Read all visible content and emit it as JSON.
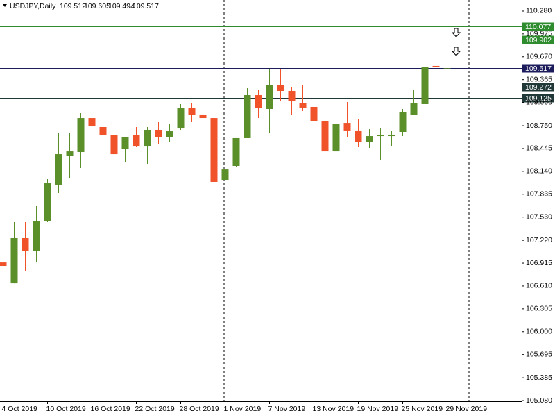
{
  "chart_data": {
    "type": "candlestick",
    "title": "USDJPY,Daily",
    "categories": [
      "4 Oct 2019",
      null,
      null,
      null,
      "10 Oct 2019",
      null,
      null,
      null,
      "16 Oct 2019",
      null,
      null,
      null,
      "22 Oct 2019",
      null,
      null,
      null,
      "28 Oct 2019",
      null,
      null,
      null,
      "1 Nov 2019",
      null,
      null,
      null,
      "7 Nov 2019",
      null,
      null,
      null,
      "13 Nov 2019",
      null,
      null,
      null,
      "19 Nov 2019",
      null,
      null,
      null,
      "25 Nov 2019",
      null,
      null,
      null,
      "29 Nov 2019"
    ],
    "open": [
      106.924,
      106.646,
      107.249,
      107.082,
      107.48,
      107.963,
      108.352,
      108.398,
      108.852,
      108.732,
      108.63,
      108.435,
      108.621,
      108.472,
      108.695,
      108.602,
      108.713,
      108.982,
      108.899,
      108.852,
      108.018,
      108.213,
      108.584,
      109.158,
      108.973,
      109.288,
      109.214,
      109.056,
      109.001,
      108.815,
      108.407,
      108.787,
      108.686,
      108.537,
      108.611,
      108.611,
      108.667,
      108.89,
      109.038,
      109.548,
      109.512
    ],
    "high": [
      107.137,
      107.462,
      107.462,
      107.675,
      108.037,
      108.648,
      108.648,
      108.917,
      108.917,
      108.964,
      108.732,
      108.602,
      108.732,
      108.732,
      108.797,
      108.778,
      109.038,
      109.056,
      109.297,
      108.871,
      108.333,
      108.584,
      109.251,
      109.223,
      109.511,
      109.501,
      109.26,
      109.288,
      109.158,
      108.815,
      108.769,
      109.066,
      108.834,
      108.704,
      108.713,
      108.686,
      108.973,
      109.232,
      109.613,
      109.594,
      109.605
    ],
    "low": [
      106.581,
      106.646,
      106.813,
      106.924,
      107.462,
      107.851,
      108.055,
      108.185,
      108.667,
      108.463,
      108.37,
      108.268,
      108.463,
      108.241,
      108.5,
      108.528,
      108.695,
      108.797,
      108.713,
      107.925,
      107.888,
      108.194,
      108.584,
      108.852,
      108.648,
      109.084,
      108.899,
      108.945,
      108.797,
      108.241,
      108.352,
      108.593,
      108.463,
      108.454,
      108.296,
      108.482,
      108.611,
      108.89,
      109.038,
      109.334,
      109.494
    ],
    "close": [
      106.878,
      107.249,
      107.082,
      107.48,
      107.981,
      108.37,
      108.407,
      108.852,
      108.741,
      108.621,
      108.37,
      108.602,
      108.472,
      108.695,
      108.593,
      108.676,
      108.982,
      108.89,
      108.852,
      108.0,
      108.166,
      108.584,
      109.158,
      108.982,
      109.288,
      109.214,
      109.075,
      108.991,
      108.815,
      108.407,
      108.769,
      108.686,
      108.537,
      108.611,
      108.621,
      108.63,
      108.927,
      109.056,
      109.538,
      109.529,
      109.517
    ],
    "up_color": "#5a8f2a",
    "down_color": "#f0522a",
    "ylim": [
      105.071,
      110.428
    ],
    "yticks": [
      {
        "value": 110.28,
        "label": "110.280"
      },
      109.975,
      {
        "value": 109.67,
        "label": "109.670"
      },
      109.365,
      {
        "value": 109.06,
        "label": "109.060"
      },
      {
        "value": 108.75,
        "label": "108.750"
      },
      108.445,
      {
        "value": 108.14,
        "label": "108.140"
      },
      107.835,
      {
        "value": 107.53,
        "label": "107.530"
      },
      {
        "value": 107.22,
        "label": "107.220"
      },
      106.915,
      {
        "value": 106.61,
        "label": "106.610"
      },
      106.305,
      {
        "value": 106.0,
        "label": "106.000"
      },
      105.695,
      105.385,
      {
        "value": 105.08,
        "label": "105.080"
      }
    ],
    "levels": [
      {
        "value": 110.077,
        "color": "#2e8b2e"
      },
      {
        "value": 109.902,
        "color": "#2e8b2e"
      },
      {
        "value": 109.517,
        "color": "#1c1c5c"
      },
      {
        "value": 109.272,
        "color": "#203838"
      },
      {
        "value": 109.125,
        "color": "#203838"
      }
    ]
  }
}
